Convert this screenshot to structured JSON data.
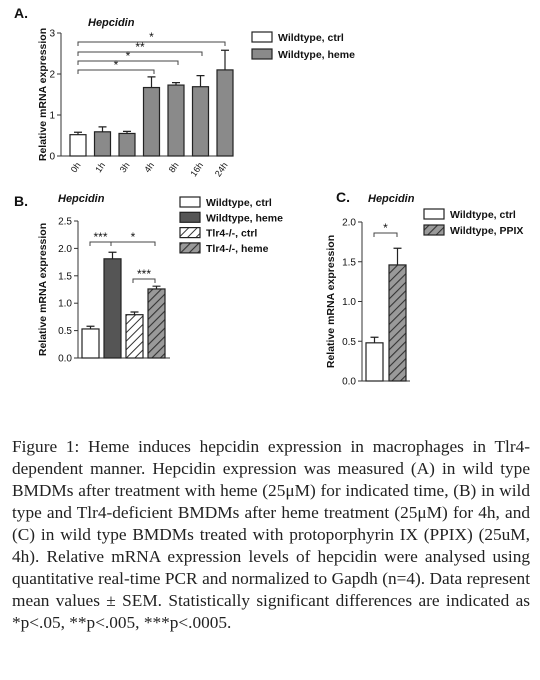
{
  "caption": {
    "lead": "Figure 1:",
    "body": " Heme induces hepcidin expression in macrophages in Tlr4-dependent manner. Hepcidin expression was measured (A) in wild type BMDMs after treatment with heme (25μM) for indicated time, (B) in wild type and Tlr4-deficient BMDMs after heme treatment (25μM) for 4h, and (C) in wild type BMDMs treated with protoporphyrin IX (PPIX) (25uM, 4h). Relative mRNA expression levels of hepcidin were analysed using quantitative real-time PCR and normalized to Gapdh (n=4). Data represent mean values ± SEM. Statistically significant differences are indicated as *p<.05, **p<.005, ***p<.0005."
  },
  "chart_data": [
    {
      "panel": "A.",
      "type": "bar",
      "title": "Hepcidin",
      "ylabel": "Relative mRNA expression",
      "ylim": [
        0,
        3
      ],
      "yticks": [
        "0",
        "1",
        "2",
        "3"
      ],
      "categories": [
        "0h",
        "1h",
        "3h",
        "4h",
        "8h",
        "16h",
        "24h"
      ],
      "values": [
        0.52,
        0.59,
        0.55,
        1.67,
        1.73,
        1.69,
        2.1
      ],
      "errors": [
        0.06,
        0.12,
        0.05,
        0.26,
        0.06,
        0.27,
        0.48
      ],
      "styles": [
        "white",
        "gray",
        "gray",
        "gray",
        "gray",
        "gray",
        "gray"
      ],
      "legend": [
        {
          "label": "Wildtype, ctrl",
          "style": "white"
        },
        {
          "label": "Wildtype, heme",
          "style": "gray"
        }
      ],
      "significance": [
        "*",
        "**",
        "*",
        "*"
      ]
    },
    {
      "panel": "B.",
      "type": "bar",
      "title": "Hepcidin",
      "ylabel": "Relative mRNA expression",
      "ylim": [
        0,
        2.5
      ],
      "yticks": [
        "0.0",
        "0.5",
        "1.0",
        "1.5",
        "2.0",
        "2.5"
      ],
      "categories": [
        "Wildtype, ctrl",
        "Wildtype, heme",
        "Tlr4-/-, ctrl",
        "Tlr4-/-, heme"
      ],
      "values": [
        0.53,
        1.81,
        0.79,
        1.26
      ],
      "errors": [
        0.05,
        0.12,
        0.05,
        0.05
      ],
      "styles": [
        "white",
        "dark",
        "hatch",
        "darkhatch"
      ],
      "legend": [
        {
          "label": "Wildtype, ctrl",
          "style": "white"
        },
        {
          "label": "Wildtype, heme",
          "style": "dark"
        },
        {
          "label": "Tlr4-/-, ctrl",
          "style": "hatch"
        },
        {
          "label": "Tlr4-/-, heme",
          "style": "darkhatch"
        }
      ],
      "significance": [
        "***",
        "*",
        "***"
      ]
    },
    {
      "panel": "C.",
      "type": "bar",
      "title": "Hepcidin",
      "ylabel": "Relative mRNA expression",
      "ylim": [
        0,
        2.0
      ],
      "yticks": [
        "0.0",
        "0.5",
        "1.0",
        "1.5",
        "2.0"
      ],
      "categories": [
        "Wildtype, ctrl",
        "Wildtype, PPIX"
      ],
      "values": [
        0.48,
        1.46
      ],
      "errors": [
        0.07,
        0.21
      ],
      "styles": [
        "white",
        "darkhatch"
      ],
      "legend": [
        {
          "label": "Wildtype, ctrl",
          "style": "white"
        },
        {
          "label": "Wildtype, PPIX",
          "style": "darkhatch"
        }
      ],
      "significance": [
        "*"
      ]
    }
  ],
  "colors": {
    "gray": "#8a8a8a",
    "dark": "#555555",
    "white": "#ffffff",
    "hatch_line": "#333333",
    "axis": "#333333"
  }
}
